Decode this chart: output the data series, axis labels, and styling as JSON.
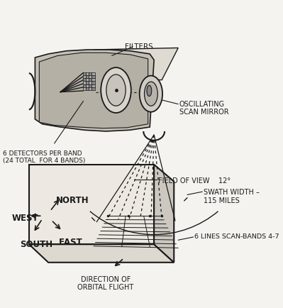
{
  "bg_color": "#f5f3ef",
  "line_color": "#1a1a1a",
  "text_color": "#1a1a1a",
  "labels": {
    "filters": "FILTERS",
    "oscillating": "OSCILLATING\nSCAN MIRROR",
    "detectors": "6 DETECTORS PER BAND\n(24 TOTAL  FOR 4 BANDS)",
    "field_of_view": "FIELD OF VIEW    12°",
    "swath_width": "SWATH WIDTH –\n115 MILES",
    "six_lines": "6 LINES SCAN-BANDS 4-7",
    "direction": "DIRECTION OF\nORBITAL FLIGHT",
    "west": "WEST",
    "north": "NORTH",
    "south": "SOUTH",
    "east": "EAST"
  },
  "figsize": [
    3.99,
    4.35
  ],
  "dpi": 100
}
